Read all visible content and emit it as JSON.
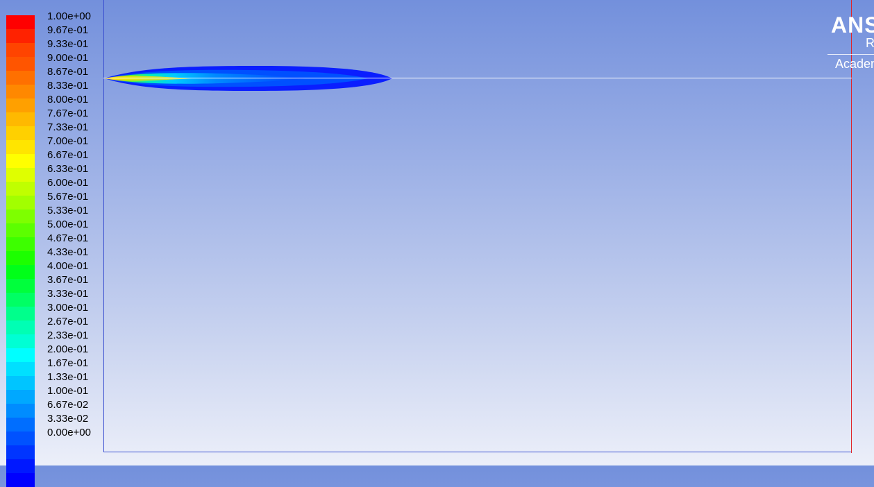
{
  "legend": {
    "colors": [
      "#ff0000",
      "#ff2200",
      "#ff4400",
      "#ff5500",
      "#ff7000",
      "#ff8800",
      "#ffa000",
      "#ffb900",
      "#ffd000",
      "#ffe500",
      "#ffff00",
      "#dfff00",
      "#c0ff00",
      "#a2ff00",
      "#7eff00",
      "#5cff00",
      "#3dff00",
      "#1cff00",
      "#00ff19",
      "#00ff3c",
      "#00ff64",
      "#00ff8c",
      "#00ffb4",
      "#00ffd4",
      "#00ffff",
      "#00e0ff",
      "#00c5ff",
      "#00a8ff",
      "#008cff",
      "#006eff",
      "#0052ff",
      "#0035ff",
      "#0018ff",
      "#0000ff"
    ],
    "labels": [
      "1.00e+00",
      "9.67e-01",
      "9.33e-01",
      "9.00e-01",
      "8.67e-01",
      "8.33e-01",
      "8.00e-01",
      "7.67e-01",
      "7.33e-01",
      "7.00e-01",
      "6.67e-01",
      "6.33e-01",
      "6.00e-01",
      "5.67e-01",
      "5.33e-01",
      "5.00e-01",
      "4.67e-01",
      "4.33e-01",
      "4.00e-01",
      "3.67e-01",
      "3.33e-01",
      "3.00e-01",
      "2.67e-01",
      "2.33e-01",
      "2.00e-01",
      "1.67e-01",
      "1.33e-01",
      "1.00e-01",
      "6.67e-02",
      "3.33e-02",
      "0.00e+00"
    ]
  },
  "logo": {
    "main": "ANS",
    "sub": "R",
    "academic": "Academ"
  }
}
